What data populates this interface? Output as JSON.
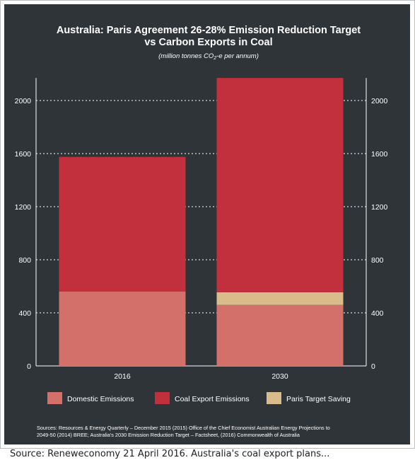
{
  "chart_data": {
    "type": "bar",
    "stacked": true,
    "title_lines": [
      "Australia: Paris Agreement 26-28% Emission Reduction Target",
      "vs Carbon Exports in Coal"
    ],
    "subtitle": {
      "before": "(million tonnes CO",
      "sub": "2",
      "after": "-e per annum)"
    },
    "categories": [
      "2016",
      "2030"
    ],
    "series": [
      {
        "name": "Domestic Emissions",
        "color": "#d4706a",
        "values": [
          560,
          460
        ]
      },
      {
        "name": "Paris Target Saving",
        "color": "#d9bc8a",
        "values": [
          0,
          95
        ]
      },
      {
        "name": "Coal Export Emissions",
        "color": "#c2303e",
        "values": [
          1015,
          1615
        ]
      }
    ],
    "legend_order": [
      "Domestic Emissions",
      "Coal Export Emissions",
      "Paris Target Saving"
    ],
    "ylim": [
      0,
      2170
    ],
    "yticks": [
      0,
      400,
      800,
      1200,
      1600,
      2000
    ],
    "xlabel": "",
    "ylabel": "",
    "grid": true,
    "legend_position": "bottom",
    "background": "#2f3439",
    "source_lines": [
      "Sources: Resources & Energy Quarterly – December 2015 (2015) Office of the Chief Economist Australian Energy Projections to",
      "2049-50 (2014) BREE; Australia's 2030 Emission Reduction Target – Factsheet, (2016) Commonwealth of Australia"
    ]
  },
  "caption": "Source: Reneweconomy 21 April 2016. Australia's coal export plans..."
}
